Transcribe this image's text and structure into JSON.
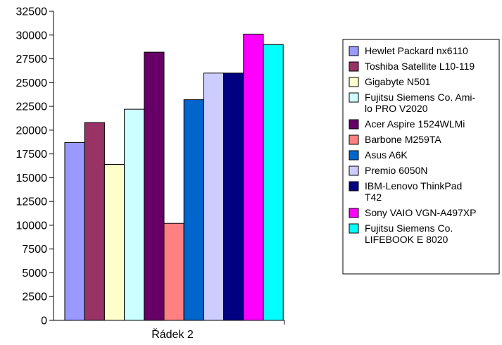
{
  "chart_data": {
    "type": "bar",
    "title": "",
    "xlabel": "",
    "ylabel": "",
    "categories": [
      "Řádek 2"
    ],
    "ylim": [
      0,
      32500
    ],
    "ytick_step": 2500,
    "grid": false,
    "legend_position": "right",
    "series": [
      {
        "name": "Hewlet Packard nx6110",
        "values": [
          18700
        ],
        "color": "#9999ff"
      },
      {
        "name": "Toshiba Satellite L10-119",
        "values": [
          20800
        ],
        "color": "#993366"
      },
      {
        "name": "Gigabyte N501",
        "values": [
          16400
        ],
        "color": "#ffffcc"
      },
      {
        "name": "Fujitsu Siemens Co. Amilo PRO V2020",
        "legend_lines": [
          "Fujitsu Siemens Co. Ami-",
          "lo PRO V2020"
        ],
        "values": [
          22200
        ],
        "color": "#ccffff"
      },
      {
        "name": "Acer Aspire 1524WLMi",
        "values": [
          28200
        ],
        "color": "#660066"
      },
      {
        "name": "Barbone M259TA",
        "values": [
          10200
        ],
        "color": "#ff8080"
      },
      {
        "name": "Asus A6K",
        "values": [
          23200
        ],
        "color": "#0066cc"
      },
      {
        "name": "Premio 6050N",
        "values": [
          26000
        ],
        "color": "#ccccff"
      },
      {
        "name": "IBM-Lenovo ThinkPad T42",
        "legend_lines": [
          "IBM-Lenovo ThinkPad",
          "T42"
        ],
        "values": [
          26000
        ],
        "color": "#000080"
      },
      {
        "name": "Sony VAIO VGN-A497XP",
        "values": [
          30100
        ],
        "color": "#ff00ff"
      },
      {
        "name": "Fujitsu Siemens Co. LIFEBOOK E 8020",
        "legend_lines": [
          "Fujitsu Siemens Co.",
          "LIFEBOOK E 8020"
        ],
        "values": [
          29000
        ],
        "color": "#00ffff"
      }
    ]
  }
}
